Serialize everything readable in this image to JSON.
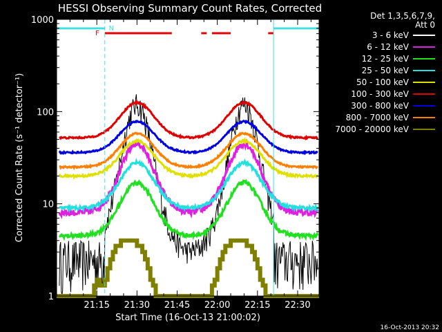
{
  "chart_data": {
    "type": "line",
    "title": "HESSI Observing Summary Count Rates, Corrected",
    "xlabel": "Start Time (16-Oct-13 21:00:02)",
    "ylabel": "Corrected Count Rate (s⁻¹ detector⁻¹)",
    "ylog": true,
    "ylim": [
      1,
      1000
    ],
    "xlim_min": [
      0,
      98
    ],
    "x_tick_labels": [
      "21:15",
      "21:30",
      "21:45",
      "22:00",
      "22:15",
      "22:30"
    ],
    "x_tick_min": [
      15,
      30,
      45,
      60,
      75,
      90
    ],
    "y_tick_labels": [
      "1",
      "10",
      "100",
      "1000"
    ],
    "y_tick_values": [
      1,
      10,
      100,
      1000
    ],
    "timestamp": "16-Oct-2013 20:32",
    "legend": {
      "header_line1": "Det 1,3,5,6,7,9,",
      "header_line2": "Att 0",
      "placement": "right"
    },
    "flags": {
      "F_label": "F",
      "N_label": "N",
      "night": [
        [
          0,
          18
        ],
        [
          81,
          98
        ]
      ],
      "flare": [
        [
          18,
          43
        ],
        [
          54,
          56
        ],
        [
          58,
          65
        ],
        [
          79,
          81
        ]
      ],
      "night_color": "#40e0e0",
      "flare_color": "#e00000"
    },
    "dashed_markers_min": [
      18,
      98
    ],
    "solid_marker_min": 81,
    "background_steps": {
      "black": [
        [
          0,
          1.5
        ],
        [
          1,
          1
        ],
        [
          4,
          1.5
        ],
        [
          9,
          2
        ],
        [
          16,
          1.5
        ],
        [
          18,
          2
        ],
        [
          82,
          2
        ],
        [
          84,
          1
        ],
        [
          88,
          1.5
        ],
        [
          91,
          1
        ],
        [
          93,
          2
        ],
        [
          98,
          1.5
        ]
      ],
      "olive": [
        [
          0,
          1
        ],
        [
          13,
          1
        ],
        [
          14,
          1.3
        ],
        [
          15,
          1.5
        ],
        [
          16,
          1.3
        ],
        [
          18,
          1.5
        ],
        [
          19,
          2
        ],
        [
          20,
          2.5
        ],
        [
          21,
          3
        ],
        [
          22,
          3.5
        ],
        [
          24,
          4
        ],
        [
          30,
          3.5
        ],
        [
          32,
          3
        ],
        [
          33,
          2.5
        ],
        [
          34,
          2
        ],
        [
          35,
          1.5
        ],
        [
          36,
          1.3
        ],
        [
          37,
          1
        ],
        [
          56,
          1
        ],
        [
          58,
          1.3
        ],
        [
          59,
          1.5
        ],
        [
          60,
          2
        ],
        [
          61,
          2.5
        ],
        [
          62,
          3
        ],
        [
          63,
          3.5
        ],
        [
          65,
          4
        ],
        [
          71,
          3.5
        ],
        [
          73,
          3
        ],
        [
          74,
          2.5
        ],
        [
          75,
          2
        ],
        [
          76,
          1.5
        ],
        [
          77,
          1.3
        ],
        [
          78,
          1
        ],
        [
          98,
          1
        ]
      ]
    },
    "series": [
      {
        "name": "3 - 6 keV",
        "color": "#000000",
        "base": 3.0,
        "peak": 120,
        "noise": 0.15
      },
      {
        "name": "6 - 12 keV",
        "color": "#e020e0",
        "base": 8.0,
        "peak": 45,
        "noise": 0.08
      },
      {
        "name": "12 - 25 keV",
        "color": "#20e020",
        "base": 4.5,
        "peak": 17,
        "noise": 0.05
      },
      {
        "name": "25 - 50 keV",
        "color": "#20e0e0",
        "base": 9.0,
        "peak": 28,
        "noise": 0.04
      },
      {
        "name": "50 - 100 keV",
        "color": "#e0e000",
        "base": 20,
        "peak": 48,
        "noise": 0.03
      },
      {
        "name": "100 - 300 keV",
        "color": "#e00000",
        "base": 52,
        "peak": 125,
        "noise": 0.02
      },
      {
        "name": "300 - 800 keV",
        "color": "#0000e0",
        "base": 36,
        "peak": 78,
        "noise": 0.02
      },
      {
        "name": "800 - 7000 keV",
        "color": "#ff8000",
        "base": 25,
        "peak": 58,
        "noise": 0.02
      },
      {
        "name": "7000 - 20000 keV",
        "color": "#808000",
        "base": 1,
        "peak": 4,
        "noise": 0.0
      }
    ],
    "orbit_peaks_min": [
      30,
      70
    ]
  }
}
